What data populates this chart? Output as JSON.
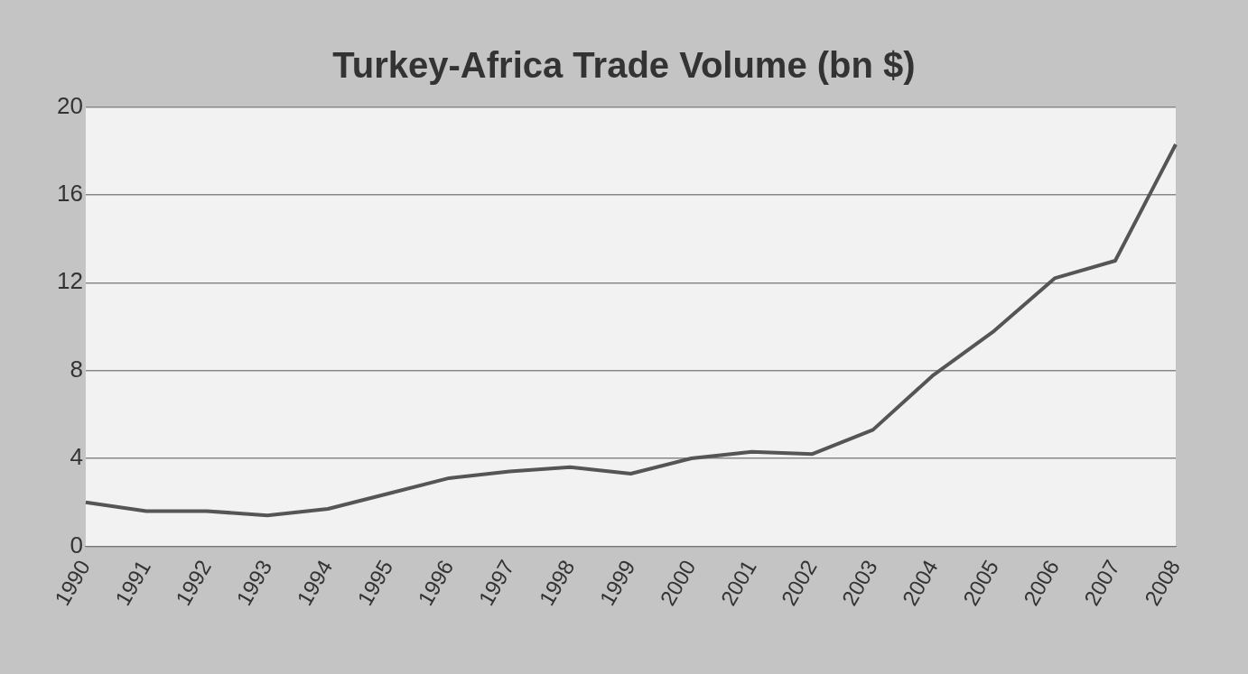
{
  "chart_data": {
    "type": "line",
    "title": "Turkey-Africa Trade Volume (bn $)",
    "categories": [
      "1990",
      "1991",
      "1992",
      "1993",
      "1994",
      "1995",
      "1996",
      "1997",
      "1998",
      "1999",
      "2000",
      "2001",
      "2002",
      "2003",
      "2004",
      "2005",
      "2006",
      "2007",
      "2008"
    ],
    "series": [
      {
        "color": "#555555",
        "values": [
          2.0,
          1.6,
          1.6,
          1.4,
          1.7,
          2.4,
          3.1,
          3.4,
          3.6,
          3.3,
          4.0,
          4.3,
          4.2,
          5.3,
          7.8,
          9.8,
          12.2,
          13.0,
          18.3
        ]
      }
    ],
    "ylim": [
      0,
      20
    ],
    "yticks": [
      0,
      4,
      8,
      12,
      16,
      20
    ],
    "grid": "y",
    "legend": false,
    "marker": "none",
    "line_style": "solid"
  }
}
